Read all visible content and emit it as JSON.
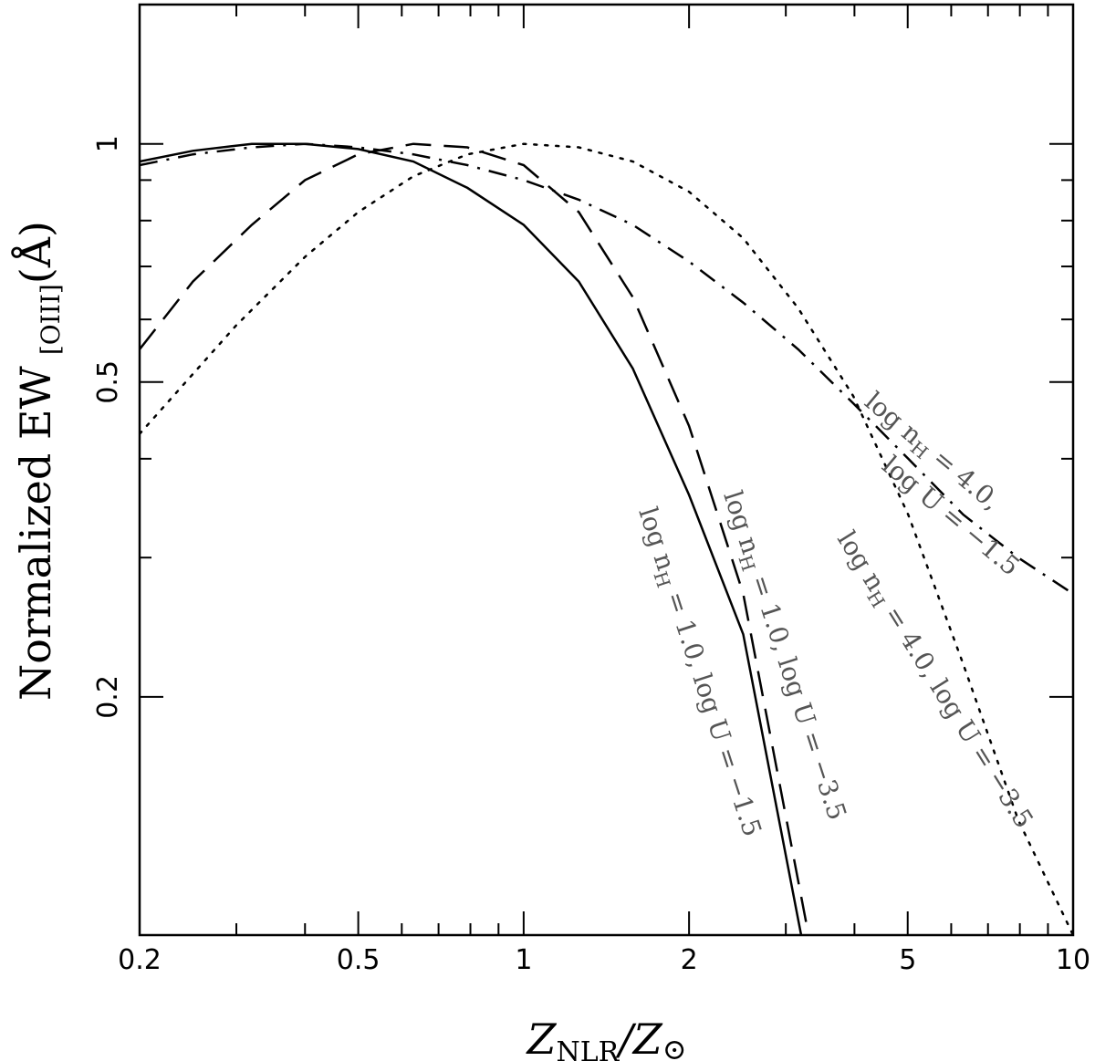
{
  "chart_data": {
    "type": "line",
    "xscale": "log",
    "yscale": "log",
    "xlim": [
      0.2,
      10
    ],
    "ylim": [
      0.1,
      1.5
    ],
    "x_ticks": [
      "0.2",
      "0.5",
      "1",
      "2",
      "5",
      "10"
    ],
    "y_ticks": [
      "0.2",
      "0.5",
      "1"
    ],
    "xlabel_main": "Z",
    "xlabel_sub": "NLR",
    "xlabel_slash": "/Z",
    "xlabel_sun": "⊙",
    "ylabel_text": "Normalized EW",
    "ylabel_sub": "[OIII]",
    "ylabel_unit": "(Å)",
    "series": [
      {
        "name": "log nH = 1.0, log U = −1.5",
        "style": "solid",
        "x": [
          0.2,
          0.25,
          0.32,
          0.4,
          0.5,
          0.63,
          0.79,
          1.0,
          1.26,
          1.58,
          2.0,
          2.51,
          3.2
        ],
        "y": [
          0.95,
          0.98,
          1.0,
          1.0,
          0.985,
          0.95,
          0.88,
          0.79,
          0.67,
          0.52,
          0.36,
          0.24,
          0.1
        ]
      },
      {
        "name": "log nH = 1.0, log U = −3.5",
        "style": "dashed",
        "x": [
          0.2,
          0.25,
          0.32,
          0.4,
          0.5,
          0.63,
          0.79,
          1.0,
          1.26,
          1.58,
          2.0,
          2.51,
          3.3
        ],
        "y": [
          0.55,
          0.67,
          0.79,
          0.9,
          0.97,
          1.0,
          0.99,
          0.94,
          0.82,
          0.64,
          0.44,
          0.27,
          0.1
        ]
      },
      {
        "name": "log nH = 4.0, log U = −3.5",
        "style": "dotted",
        "x": [
          0.2,
          0.3,
          0.4,
          0.5,
          0.63,
          0.79,
          1.0,
          1.26,
          1.58,
          2.0,
          2.51,
          3.16,
          3.98,
          5.01,
          6.31,
          7.94,
          10.0
        ],
        "y": [
          0.43,
          0.59,
          0.72,
          0.82,
          0.91,
          0.97,
          1.0,
          0.99,
          0.95,
          0.87,
          0.76,
          0.62,
          0.48,
          0.34,
          0.22,
          0.14,
          0.1
        ]
      },
      {
        "name": "log nH = 4.0, log U = −1.5",
        "style": "dashdot",
        "x": [
          0.2,
          0.25,
          0.32,
          0.4,
          0.5,
          0.63,
          0.79,
          1.0,
          1.26,
          1.58,
          2.0,
          2.51,
          3.16,
          3.98,
          5.01,
          6.31,
          7.94,
          10.0
        ],
        "y": [
          0.94,
          0.97,
          0.99,
          1.0,
          0.99,
          0.97,
          0.94,
          0.9,
          0.85,
          0.79,
          0.71,
          0.63,
          0.55,
          0.47,
          0.4,
          0.34,
          0.3,
          0.27
        ]
      }
    ],
    "annotations": [
      {
        "line1": "log n",
        "line1_sub": "H",
        "line1_rest": " = 1.0, log U = −1.5"
      },
      {
        "line1": "log n",
        "line1_sub": "H",
        "line1_rest": " = 1.0, log U = −3.5"
      },
      {
        "line1": "log n",
        "line1_sub": "H",
        "line1_rest": " = 4.0, log U = −3.5"
      },
      {
        "line1": "log n",
        "line1_sub": "H",
        "line1_rest": " = 4.0,",
        "line2": "log U = −1.5"
      }
    ],
    "grid": false,
    "legend": "none"
  }
}
